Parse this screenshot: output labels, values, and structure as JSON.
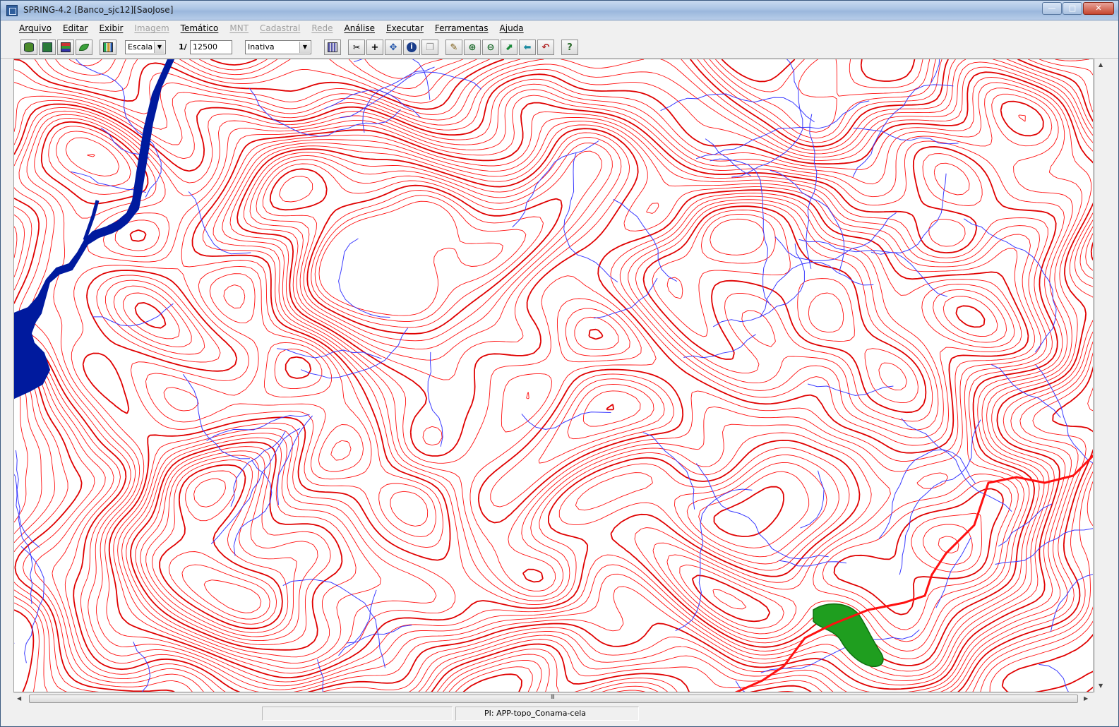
{
  "window": {
    "title": "SPRING-4.2 [Banco_sjc12][SaoJose]",
    "controls": {
      "minimize": "—",
      "maximize": "□",
      "close": "✕"
    }
  },
  "menu": {
    "items": [
      {
        "label": "Arquivo",
        "enabled": true
      },
      {
        "label": "Editar",
        "enabled": true
      },
      {
        "label": "Exibir",
        "enabled": true
      },
      {
        "label": "Imagem",
        "enabled": false
      },
      {
        "label": "Temático",
        "enabled": true
      },
      {
        "label": "MNT",
        "enabled": false
      },
      {
        "label": "Cadastral",
        "enabled": false
      },
      {
        "label": "Rede",
        "enabled": false
      },
      {
        "label": "Análise",
        "enabled": true
      },
      {
        "label": "Executar",
        "enabled": true
      },
      {
        "label": "Ferramentas",
        "enabled": true
      },
      {
        "label": "Ajuda",
        "enabled": true
      }
    ]
  },
  "toolbar": {
    "scale_mode": "Escala",
    "scale_prefix": "1/",
    "scale_value": "12500",
    "cursor_mode": "Inativa",
    "icons": [
      "database-icon",
      "project-icon",
      "layers-icon",
      "leaf-icon",
      "chart-icon",
      "grid-icon",
      "cut-icon",
      "plus-icon",
      "pan-icon",
      "info-icon",
      "copy-icon",
      "pencil-icon",
      "zoom-in-icon",
      "zoom-out-icon",
      "zoom-area-icon",
      "back-arrow-icon",
      "undo-icon",
      "help-icon"
    ]
  },
  "map": {
    "colors": {
      "contour": "#ff1010",
      "contour_index": "#e00000",
      "drainage": "#3a3aff",
      "water": "#001a9e",
      "app_area": "#1f9e1f",
      "background": "#ffffff"
    }
  },
  "scrollbar": {
    "h_thumb_grip": "III"
  },
  "status": {
    "left": "",
    "plan": "PI: APP-topo_Conama-cela"
  }
}
